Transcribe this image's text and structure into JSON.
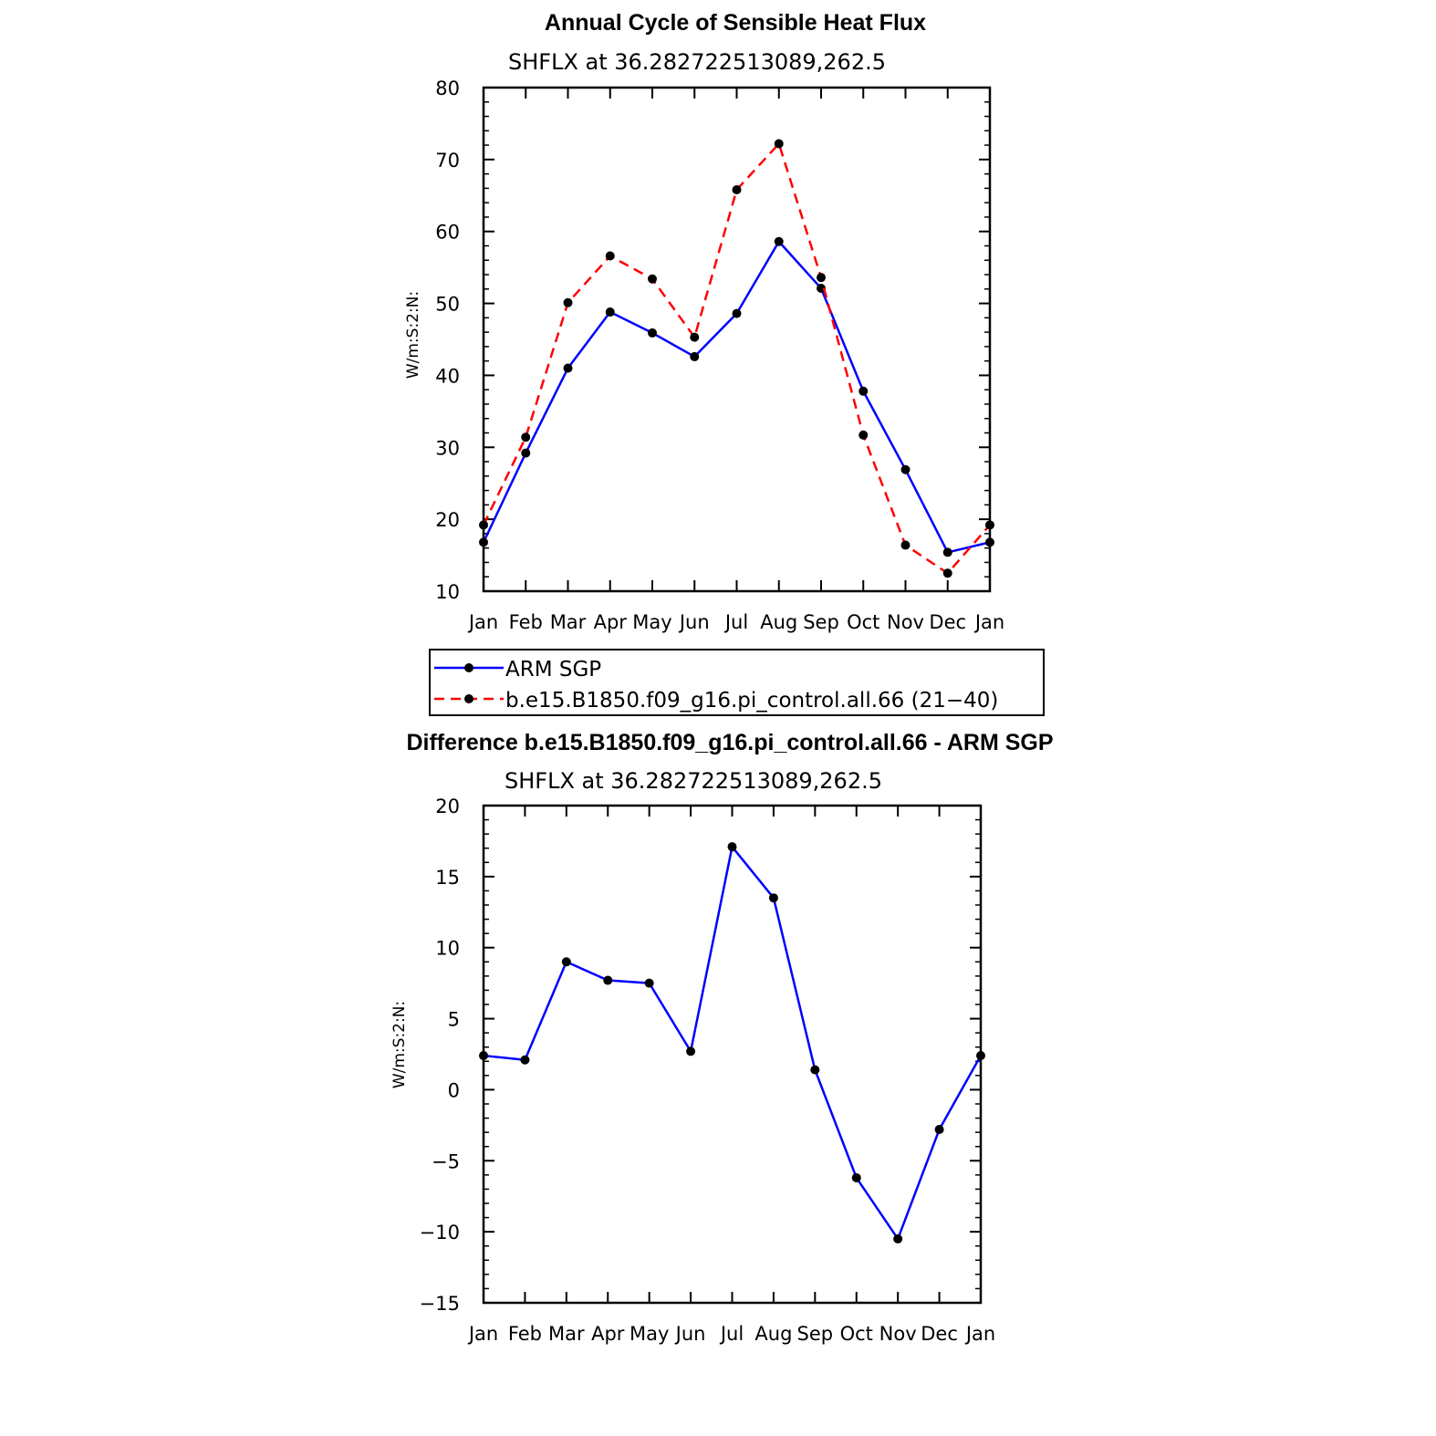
{
  "chart_data": [
    {
      "type": "line",
      "title": "Annual Cycle of Sensible Heat Flux",
      "subtitle": "SHFLX  at  36.282722513089,262.5",
      "ylabel": "W/m:S:2:N:",
      "xlabel": "",
      "ylim": [
        10,
        80
      ],
      "yticks": [
        10,
        20,
        30,
        40,
        50,
        60,
        70,
        80
      ],
      "categories": [
        "Jan",
        "Feb",
        "Mar",
        "Apr",
        "May",
        "Jun",
        "Jul",
        "Aug",
        "Sep",
        "Oct",
        "Nov",
        "Dec",
        "Jan"
      ],
      "series": [
        {
          "name": "ARM SGP",
          "color": "#0000ff",
          "dash": "solid",
          "values": [
            16.8,
            29.2,
            41.0,
            48.8,
            45.9,
            42.6,
            48.6,
            58.6,
            52.1,
            37.8,
            26.9,
            15.4,
            16.8
          ]
        },
        {
          "name": "b.e15.B1850.f09_g16.pi_control.all.66 (21−40)",
          "color": "#ff0000",
          "dash": "dashed",
          "values": [
            19.2,
            31.4,
            50.1,
            56.6,
            53.4,
            45.3,
            65.8,
            72.2,
            53.6,
            31.7,
            16.4,
            12.5,
            19.2
          ]
        }
      ],
      "legend": "below"
    },
    {
      "type": "line",
      "title": "Difference b.e15.B1850.f09_g16.pi_control.all.66 - ARM SGP",
      "subtitle": "SHFLX  at  36.282722513089,262.5",
      "ylabel": "W/m:S:2:N:",
      "xlabel": "",
      "ylim": [
        -15,
        20
      ],
      "yticks": [
        -15,
        -10,
        -5,
        0,
        5,
        10,
        15,
        20
      ],
      "ytick_labels": [
        "−15",
        "−10",
        "−5",
        "0",
        "5",
        "10",
        "15",
        "20"
      ],
      "categories": [
        "Jan",
        "Feb",
        "Mar",
        "Apr",
        "May",
        "Jun",
        "Jul",
        "Aug",
        "Sep",
        "Oct",
        "Nov",
        "Dec",
        "Jan"
      ],
      "series": [
        {
          "name": "Difference",
          "color": "#0000ff",
          "dash": "solid",
          "values": [
            2.4,
            2.1,
            9.0,
            7.7,
            7.5,
            2.7,
            17.1,
            13.5,
            1.4,
            -6.2,
            -10.5,
            -2.8,
            2.4
          ]
        }
      ]
    }
  ]
}
